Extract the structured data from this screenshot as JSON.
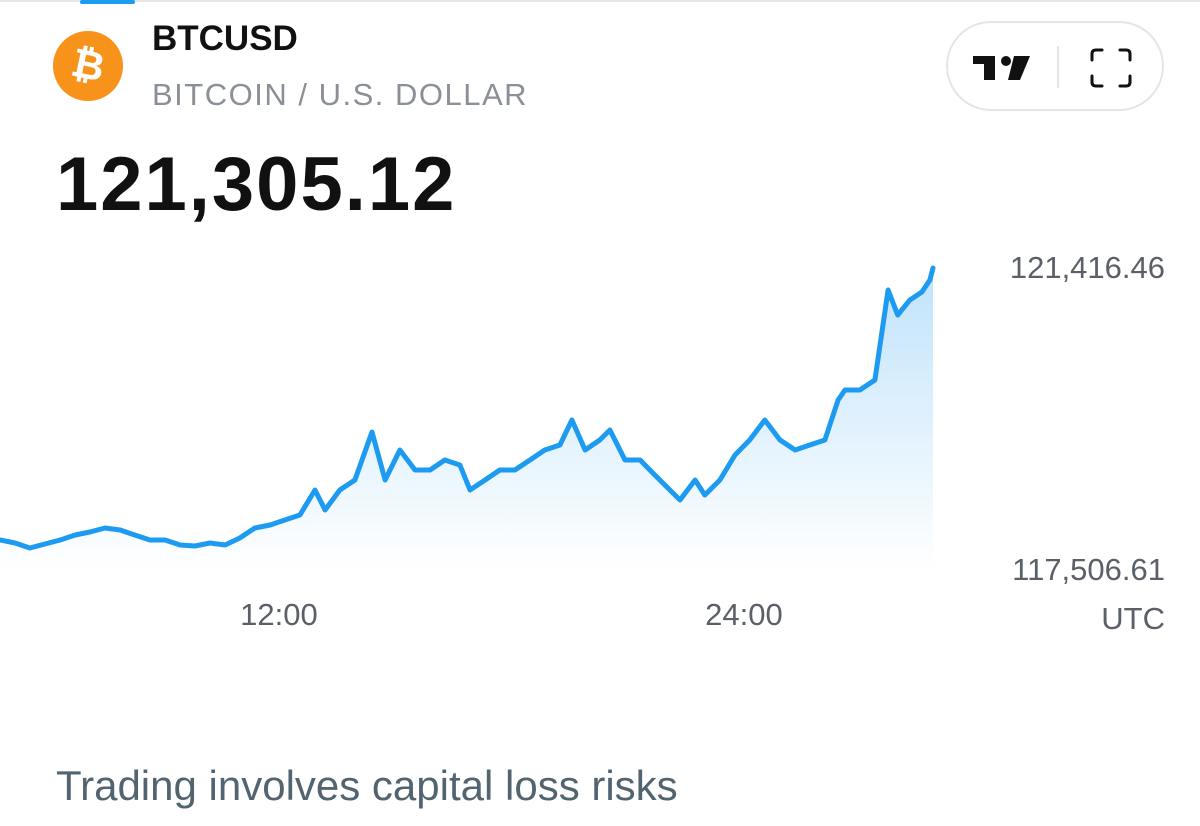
{
  "header": {
    "logo_glyph": "₿",
    "symbol": "BTCUSD",
    "name": "BITCOIN / U.S. DOLLAR",
    "price": "121,305.12"
  },
  "chart_data": {
    "type": "line",
    "color": "#1d9bf0",
    "x": [
      4.8,
      5.19,
      5.57,
      5.96,
      6.35,
      6.74,
      7.12,
      7.51,
      7.9,
      8.28,
      8.67,
      9.06,
      9.45,
      9.83,
      10.22,
      10.61,
      10.99,
      11.38,
      11.77,
      12.15,
      12.54,
      12.93,
      13.19,
      13.57,
      13.96,
      14.4,
      14.74,
      15.12,
      15.51,
      15.9,
      16.28,
      16.67,
      16.93,
      17.32,
      17.7,
      18.09,
      18.48,
      18.86,
      19.25,
      19.56,
      19.9,
      20.28,
      20.54,
      20.93,
      21.32,
      21.7,
      22.09,
      22.35,
      22.74,
      22.99,
      23.38,
      23.77,
      24.15,
      24.54,
      24.93,
      25.32,
      25.7,
      26.09,
      26.43,
      26.61,
      26.99,
      27.38,
      27.72,
      27.97,
      28.28,
      28.59,
      28.8,
      28.88
    ],
    "values": [
      117895,
      117856,
      117791,
      117843,
      117895,
      117960,
      117998,
      118050,
      118024,
      117960,
      117895,
      117895,
      117830,
      117817,
      117856,
      117830,
      117921,
      118050,
      118089,
      118154,
      118219,
      118542,
      118283,
      118542,
      118672,
      119293,
      118672,
      119060,
      118801,
      118801,
      118931,
      118866,
      118542,
      118672,
      118801,
      118801,
      118931,
      119060,
      119125,
      119448,
      119060,
      119190,
      119319,
      118931,
      118931,
      118736,
      118542,
      118413,
      118672,
      118477,
      118672,
      118995,
      119190,
      119448,
      119190,
      119060,
      119125,
      119190,
      119707,
      119837,
      119837,
      119966,
      121131,
      120808,
      121001,
      121105,
      121261,
      121416
    ],
    "xlim": [
      4.8,
      28.88
    ],
    "xticks": [
      {
        "value": 12,
        "label": "12:00"
      },
      {
        "value": 24,
        "label": "24:00"
      }
    ],
    "ylim": [
      117506.61,
      121416.46
    ],
    "yticks": [
      {
        "value": 121416.46,
        "label": "121,416.46"
      },
      {
        "value": 117506.61,
        "label": "117,506.61"
      }
    ],
    "timezone": "UTC"
  },
  "footer": {
    "disclaimer": "Trading involves capital loss risks"
  }
}
